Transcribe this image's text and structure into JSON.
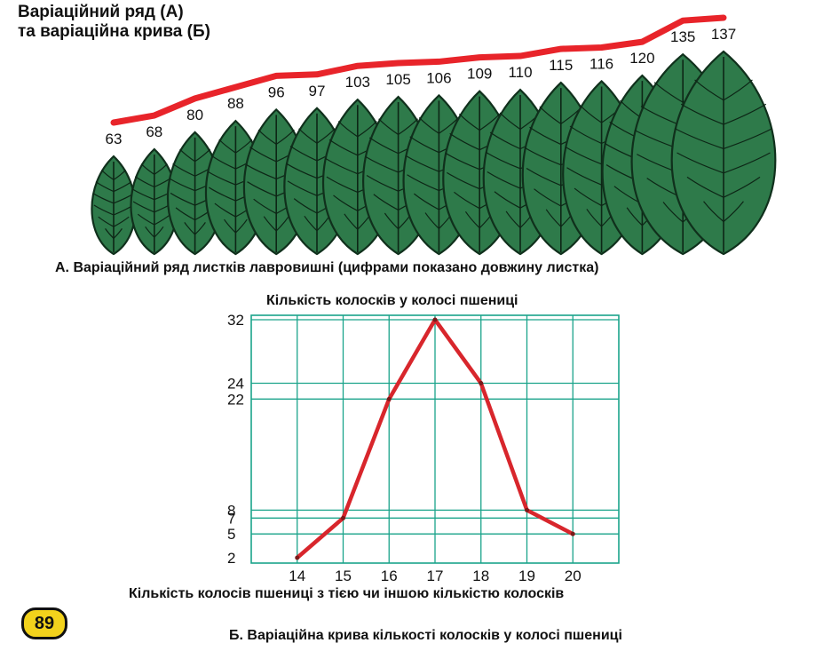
{
  "header": {
    "title_line1": "Варіаційний ряд (А)",
    "title_line2": "та варіаційна крива (Б)"
  },
  "leaf_series": {
    "caption": "А. Варіаційний ряд листків лавровишні (цифрами показано довжину  листка)",
    "lengths": [
      63,
      68,
      80,
      88,
      96,
      97,
      103,
      105,
      106,
      109,
      110,
      115,
      116,
      120,
      135,
      137
    ],
    "leaf_color": "#2e7a4a",
    "curve_color": "#e8242a"
  },
  "chart_data": {
    "type": "line",
    "title": "Кількість колосків у колосі пшениці",
    "xlabel": "Кількість колосів пшениці з тією чи іншою кількістю колосків",
    "x": [
      14,
      15,
      16,
      17,
      18,
      19,
      20
    ],
    "y": [
      2,
      7,
      22,
      32,
      24,
      8,
      5
    ],
    "x_ticks": [
      "14",
      "15",
      "16",
      "17",
      "18",
      "19",
      "20"
    ],
    "y_ticks": [
      "2",
      "5",
      "7",
      "8",
      "22",
      "24",
      "32"
    ],
    "grid": true,
    "grid_color": "#1aa38a",
    "line_color": "#d8262c"
  },
  "footer": {
    "caption_b": "Б. Варіаційна крива кількості колосків у колосі пшениці",
    "page_number": "89",
    "page_number_color": "#f2d21c"
  }
}
